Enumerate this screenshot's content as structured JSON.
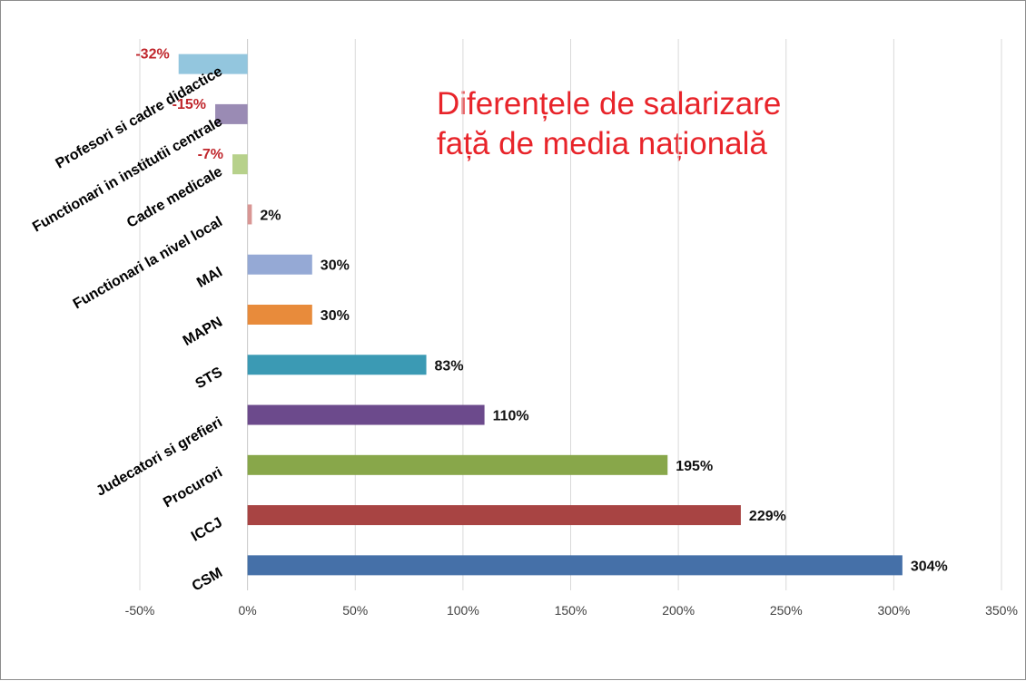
{
  "title": {
    "line1": "Diferențele de salarizare",
    "line2": "față de media națională"
  },
  "colors": {
    "title": "#E8242A",
    "grid": "#D9D9D9",
    "axis_text": "#404040",
    "label_text": "#000000",
    "negative_label": "#C0262C",
    "positive_label": "#111111"
  },
  "chart_data": {
    "type": "bar",
    "orientation": "horizontal",
    "categories": [
      "Profesori si cadre didactice",
      "Functionari in institutii centrale",
      "Cadre medicale",
      "Functionari la nivel local",
      "MAI",
      "MAPN",
      "STS",
      "Judecatori si grefieri",
      "Procurori",
      "ICCJ",
      "CSM"
    ],
    "values": [
      -32,
      -15,
      -7,
      2,
      30,
      30,
      83,
      110,
      195,
      229,
      304
    ],
    "value_labels": [
      "-32%",
      "-15%",
      "-7%",
      "2%",
      "30%",
      "30%",
      "83%",
      "110%",
      "195%",
      "229%",
      "304%"
    ],
    "bar_colors": [
      "#93C6DE",
      "#9A8BB4",
      "#B7D18B",
      "#D99694",
      "#95A9D5",
      "#E88B3B",
      "#3B9AB4",
      "#6C4A8C",
      "#88A74A",
      "#A84443",
      "#4570A8"
    ],
    "xlim": [
      -50,
      350
    ],
    "x_ticks": [
      -50,
      0,
      50,
      100,
      150,
      200,
      250,
      300,
      350
    ],
    "x_tick_labels": [
      "-50%",
      "0%",
      "50%",
      "100%",
      "150%",
      "200%",
      "250%",
      "300%",
      "350%"
    ],
    "grid": "vertical",
    "legend": "none"
  }
}
